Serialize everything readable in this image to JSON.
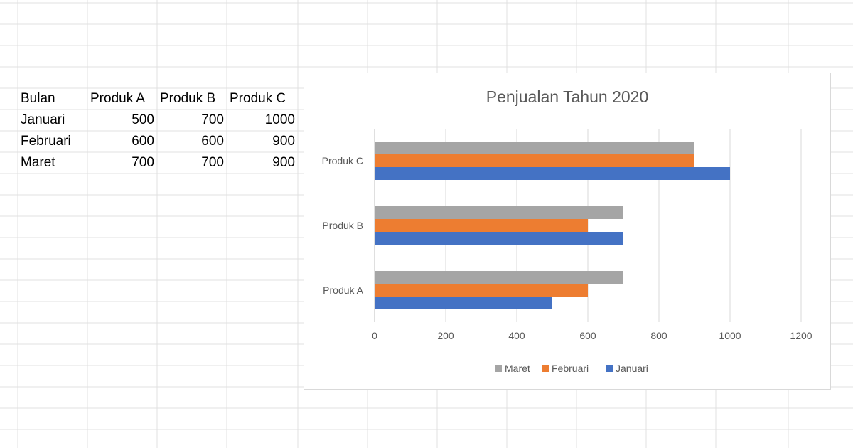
{
  "sheet": {
    "headers": [
      "Bulan",
      "Produk A",
      "Produk B",
      "Produk C"
    ],
    "rows": [
      {
        "label": "Januari",
        "values": [
          "500",
          "700",
          "1000"
        ]
      },
      {
        "label": "Februari",
        "values": [
          "600",
          "600",
          "900"
        ]
      },
      {
        "label": "Maret",
        "values": [
          "700",
          "700",
          "900"
        ]
      }
    ]
  },
  "chart_data": {
    "type": "bar",
    "orientation": "horizontal",
    "title": "Penjualan Tahun 2020",
    "categories": [
      "Produk C",
      "Produk B",
      "Produk A"
    ],
    "series": [
      {
        "name": "Maret",
        "color": "#a5a5a5",
        "values": [
          900,
          700,
          700
        ]
      },
      {
        "name": "Februari",
        "color": "#ed7d31",
        "values": [
          900,
          600,
          600
        ]
      },
      {
        "name": "Januari",
        "color": "#4472c4",
        "values": [
          1000,
          700,
          500
        ]
      }
    ],
    "xlim": [
      0,
      1200
    ],
    "xticks": [
      0,
      200,
      400,
      600,
      800,
      1000,
      1200
    ],
    "grid": true,
    "legend": "bottom",
    "xlabel": "",
    "ylabel": ""
  }
}
